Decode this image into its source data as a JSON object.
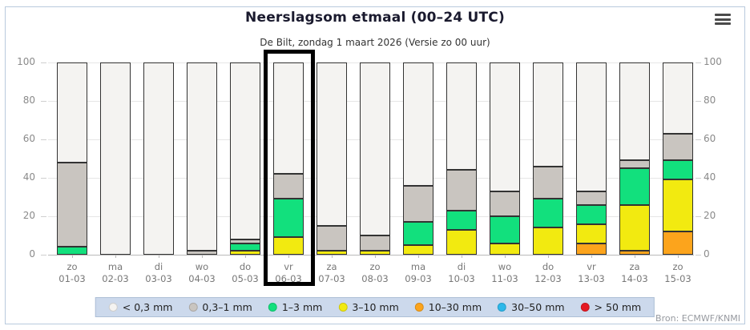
{
  "header": {
    "title": "Neerslagsom etmaal (00–24 UTC)",
    "subtitle": "De Bilt, zondag 1 maart 2026 (Versie zo 00 uur)",
    "menu_icon": "hamburger-menu-icon"
  },
  "source": "Bron: ECMWF/KNMI",
  "chart_data": {
    "type": "bar",
    "stacked": true,
    "title": "Neerslagsom etmaal (00–24 UTC)",
    "subtitle": "De Bilt, zondag 1 maart 2026 (Versie zo 00 uur)",
    "ylabel": "",
    "xlabel": "",
    "ylim": [
      0,
      100
    ],
    "yticks": [
      0,
      20,
      40,
      60,
      80,
      100
    ],
    "grid": true,
    "legend_position": "bottom",
    "highlight_index": 5,
    "highlighted_category": "vr 06-03",
    "categories": [
      {
        "day": "zo",
        "date": "01-03"
      },
      {
        "day": "ma",
        "date": "02-03"
      },
      {
        "day": "di",
        "date": "03-03"
      },
      {
        "day": "wo",
        "date": "04-03"
      },
      {
        "day": "do",
        "date": "05-03"
      },
      {
        "day": "vr",
        "date": "06-03"
      },
      {
        "day": "za",
        "date": "07-03"
      },
      {
        "day": "zo",
        "date": "08-03"
      },
      {
        "day": "ma",
        "date": "09-03"
      },
      {
        "day": "di",
        "date": "10-03"
      },
      {
        "day": "wo",
        "date": "11-03"
      },
      {
        "day": "do",
        "date": "12-03"
      },
      {
        "day": "vr",
        "date": "13-03"
      },
      {
        "day": "za",
        "date": "14-03"
      },
      {
        "day": "zo",
        "date": "15-03"
      }
    ],
    "bands": [
      {
        "key": "lt03",
        "label": "< 0,3 mm",
        "color": "#f4f3f1"
      },
      {
        "key": "b03_1",
        "label": "0,3–1 mm",
        "color": "#c9c5c0"
      },
      {
        "key": "b1_3",
        "label": "1–3 mm",
        "color": "#12e07d"
      },
      {
        "key": "b3_10",
        "label": "3–10 mm",
        "color": "#f2ea10"
      },
      {
        "key": "b10_30",
        "label": "10–30 mm",
        "color": "#fca41c"
      },
      {
        "key": "b30_50",
        "label": "30–50 mm",
        "color": "#2cb8ea"
      },
      {
        "key": "gt50",
        "label": "> 50 mm",
        "color": "#e51923"
      }
    ],
    "series": [
      {
        "name": "> 50 mm",
        "band": "gt50",
        "values": [
          0,
          0,
          0,
          0,
          0,
          0,
          0,
          0,
          0,
          0,
          0,
          0,
          0,
          0,
          0
        ]
      },
      {
        "name": "30–50 mm",
        "band": "b30_50",
        "values": [
          0,
          0,
          0,
          0,
          0,
          0,
          0,
          0,
          0,
          0,
          0,
          0,
          0,
          0,
          0
        ]
      },
      {
        "name": "10–30 mm",
        "band": "b10_30",
        "values": [
          0,
          0,
          0,
          0,
          0,
          0,
          0,
          0,
          0,
          0,
          0,
          0,
          6,
          2,
          12
        ]
      },
      {
        "name": "3–10 mm",
        "band": "b3_10",
        "values": [
          0,
          0,
          0,
          0,
          2,
          9,
          2,
          2,
          5,
          13,
          6,
          14,
          10,
          24,
          27
        ]
      },
      {
        "name": "1–3 mm",
        "band": "b1_3",
        "values": [
          4,
          0,
          0,
          0,
          4,
          20,
          0,
          0,
          12,
          10,
          14,
          15,
          10,
          19,
          10
        ]
      },
      {
        "name": "0,3–1 mm",
        "band": "b03_1",
        "values": [
          44,
          0,
          0,
          2,
          2,
          13,
          13,
          8,
          19,
          21,
          13,
          17,
          7,
          4,
          14
        ]
      },
      {
        "name": "< 0,3 mm",
        "band": "lt03",
        "values": [
          52,
          100,
          100,
          98,
          92,
          58,
          85,
          90,
          64,
          56,
          67,
          54,
          67,
          51,
          37
        ]
      }
    ]
  }
}
